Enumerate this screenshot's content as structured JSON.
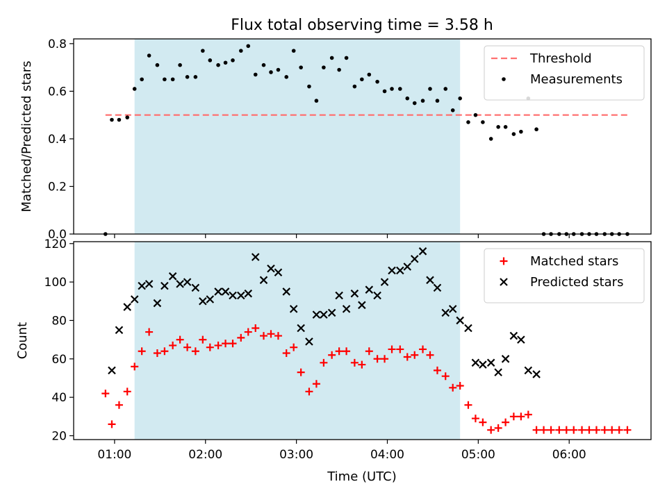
{
  "figure": {
    "title": "Flux total observing time = 3.58 h",
    "xlabel": "Time (UTC)",
    "x_ticks": [
      "01:00",
      "02:00",
      "03:00",
      "04:00",
      "05:00",
      "06:00"
    ]
  },
  "chart_data": [
    {
      "type": "scatter",
      "panel": "top",
      "title": "Flux total observing time = 3.58 h",
      "xlabel": "",
      "ylabel": "Matched/Predicted stars",
      "xlim_hours": [
        0.55,
        6.9
      ],
      "ylim": [
        0,
        0.82
      ],
      "y_ticks": [
        "0.0",
        "0.2",
        "0.4",
        "0.6",
        "0.8"
      ],
      "shaded_interval_hours": [
        1.22,
        4.8
      ],
      "shade_color": "#add8e6",
      "grid": false,
      "legend_position": "top-right",
      "threshold": {
        "name": "Threshold",
        "value": 0.5,
        "x_range_hours": [
          0.9,
          6.65
        ],
        "color": "#ff7070",
        "style": "dashed"
      },
      "series": [
        {
          "name": "Measurements",
          "marker": "dot",
          "color": "#000000",
          "x_hours": [
            0.9,
            0.97,
            1.05,
            1.14,
            1.22,
            1.3,
            1.38,
            1.47,
            1.55,
            1.64,
            1.72,
            1.8,
            1.89,
            1.97,
            2.05,
            2.14,
            2.22,
            2.3,
            2.39,
            2.47,
            2.55,
            2.64,
            2.72,
            2.8,
            2.89,
            2.97,
            3.05,
            3.14,
            3.22,
            3.3,
            3.39,
            3.47,
            3.55,
            3.64,
            3.72,
            3.8,
            3.89,
            3.97,
            4.05,
            4.14,
            4.22,
            4.3,
            4.39,
            4.47,
            4.55,
            4.64,
            4.72,
            4.8,
            4.89,
            4.97,
            5.05,
            5.14,
            5.22,
            5.3,
            5.39,
            5.47,
            5.55,
            5.64,
            5.72,
            5.8,
            5.89,
            5.97,
            6.05,
            6.14,
            6.22,
            6.3,
            6.39,
            6.47,
            6.55,
            6.64
          ],
          "values": [
            0.0,
            0.48,
            0.48,
            0.49,
            0.61,
            0.65,
            0.75,
            0.71,
            0.65,
            0.65,
            0.71,
            0.66,
            0.66,
            0.77,
            0.73,
            0.71,
            0.72,
            0.73,
            0.77,
            0.79,
            0.67,
            0.71,
            0.68,
            0.69,
            0.66,
            0.77,
            0.7,
            0.62,
            0.56,
            0.7,
            0.74,
            0.69,
            0.74,
            0.62,
            0.65,
            0.67,
            0.64,
            0.6,
            0.61,
            0.61,
            0.57,
            0.55,
            0.56,
            0.61,
            0.56,
            0.61,
            0.52,
            0.57,
            0.47,
            0.5,
            0.47,
            0.4,
            0.45,
            0.45,
            0.42,
            0.43,
            0.57,
            0.44,
            0.0,
            0.0,
            0.0,
            0.0,
            0.0,
            0.0,
            0.0,
            0.0,
            0.0,
            0.0,
            0.0,
            0.0
          ]
        }
      ]
    },
    {
      "type": "scatter",
      "panel": "bottom",
      "xlabel": "Time (UTC)",
      "ylabel": "Count",
      "xlim_hours": [
        0.55,
        6.9
      ],
      "ylim": [
        18,
        121
      ],
      "y_ticks": [
        "20",
        "40",
        "60",
        "80",
        "100",
        "120"
      ],
      "x_ticks": [
        "01:00",
        "02:00",
        "03:00",
        "04:00",
        "05:00",
        "06:00"
      ],
      "shaded_interval_hours": [
        1.22,
        4.8
      ],
      "shade_color": "#add8e6",
      "grid": false,
      "legend_position": "top-right",
      "series": [
        {
          "name": "Matched stars",
          "marker": "plus",
          "color": "#ff0000",
          "x_hours": [
            0.9,
            0.97,
            1.05,
            1.14,
            1.22,
            1.3,
            1.38,
            1.47,
            1.55,
            1.64,
            1.72,
            1.8,
            1.89,
            1.97,
            2.05,
            2.14,
            2.22,
            2.3,
            2.39,
            2.47,
            2.55,
            2.64,
            2.72,
            2.8,
            2.89,
            2.97,
            3.05,
            3.14,
            3.22,
            3.3,
            3.39,
            3.47,
            3.55,
            3.64,
            3.72,
            3.8,
            3.89,
            3.97,
            4.05,
            4.14,
            4.22,
            4.3,
            4.39,
            4.47,
            4.55,
            4.64,
            4.72,
            4.8,
            4.89,
            4.97,
            5.05,
            5.14,
            5.22,
            5.3,
            5.39,
            5.47,
            5.55,
            5.64,
            5.72,
            5.8,
            5.89,
            5.97,
            6.05,
            6.14,
            6.22,
            6.3,
            6.39,
            6.47,
            6.55,
            6.64
          ],
          "values": [
            42,
            26,
            36,
            43,
            56,
            64,
            74,
            63,
            64,
            67,
            70,
            66,
            64,
            70,
            66,
            67,
            68,
            68,
            71,
            74,
            76,
            72,
            73,
            72,
            63,
            66,
            53,
            43,
            47,
            58,
            62,
            64,
            64,
            58,
            57,
            64,
            60,
            60,
            65,
            65,
            61,
            62,
            65,
            62,
            54,
            51,
            45,
            46,
            36,
            29,
            27,
            23,
            24,
            27,
            30,
            30,
            31,
            23,
            23,
            23,
            23,
            23,
            23,
            23,
            23,
            23,
            23,
            23,
            23,
            23
          ]
        },
        {
          "name": "Predicted stars",
          "marker": "x",
          "color": "#000000",
          "x_hours": [
            0.97,
            1.05,
            1.14,
            1.22,
            1.3,
            1.38,
            1.47,
            1.55,
            1.64,
            1.72,
            1.8,
            1.89,
            1.97,
            2.05,
            2.14,
            2.22,
            2.3,
            2.39,
            2.47,
            2.55,
            2.64,
            2.72,
            2.8,
            2.89,
            2.97,
            3.05,
            3.14,
            3.22,
            3.3,
            3.39,
            3.47,
            3.55,
            3.64,
            3.72,
            3.8,
            3.89,
            3.97,
            4.05,
            4.14,
            4.22,
            4.3,
            4.39,
            4.47,
            4.55,
            4.64,
            4.72,
            4.8,
            4.89,
            4.97,
            5.05,
            5.14,
            5.22,
            5.3,
            5.39,
            5.47,
            5.55,
            5.64
          ],
          "values": [
            54,
            75,
            87,
            91,
            98,
            99,
            89,
            98,
            103,
            99,
            100,
            97,
            90,
            91,
            95,
            95,
            93,
            93,
            94,
            113,
            101,
            107,
            105,
            95,
            86,
            76,
            69,
            83,
            83,
            84,
            93,
            86,
            94,
            88,
            96,
            93,
            100,
            106,
            106,
            108,
            112,
            116,
            101,
            97,
            84,
            86,
            80,
            76,
            58,
            57,
            58,
            53,
            60,
            72,
            70,
            54,
            52
          ]
        }
      ]
    }
  ]
}
